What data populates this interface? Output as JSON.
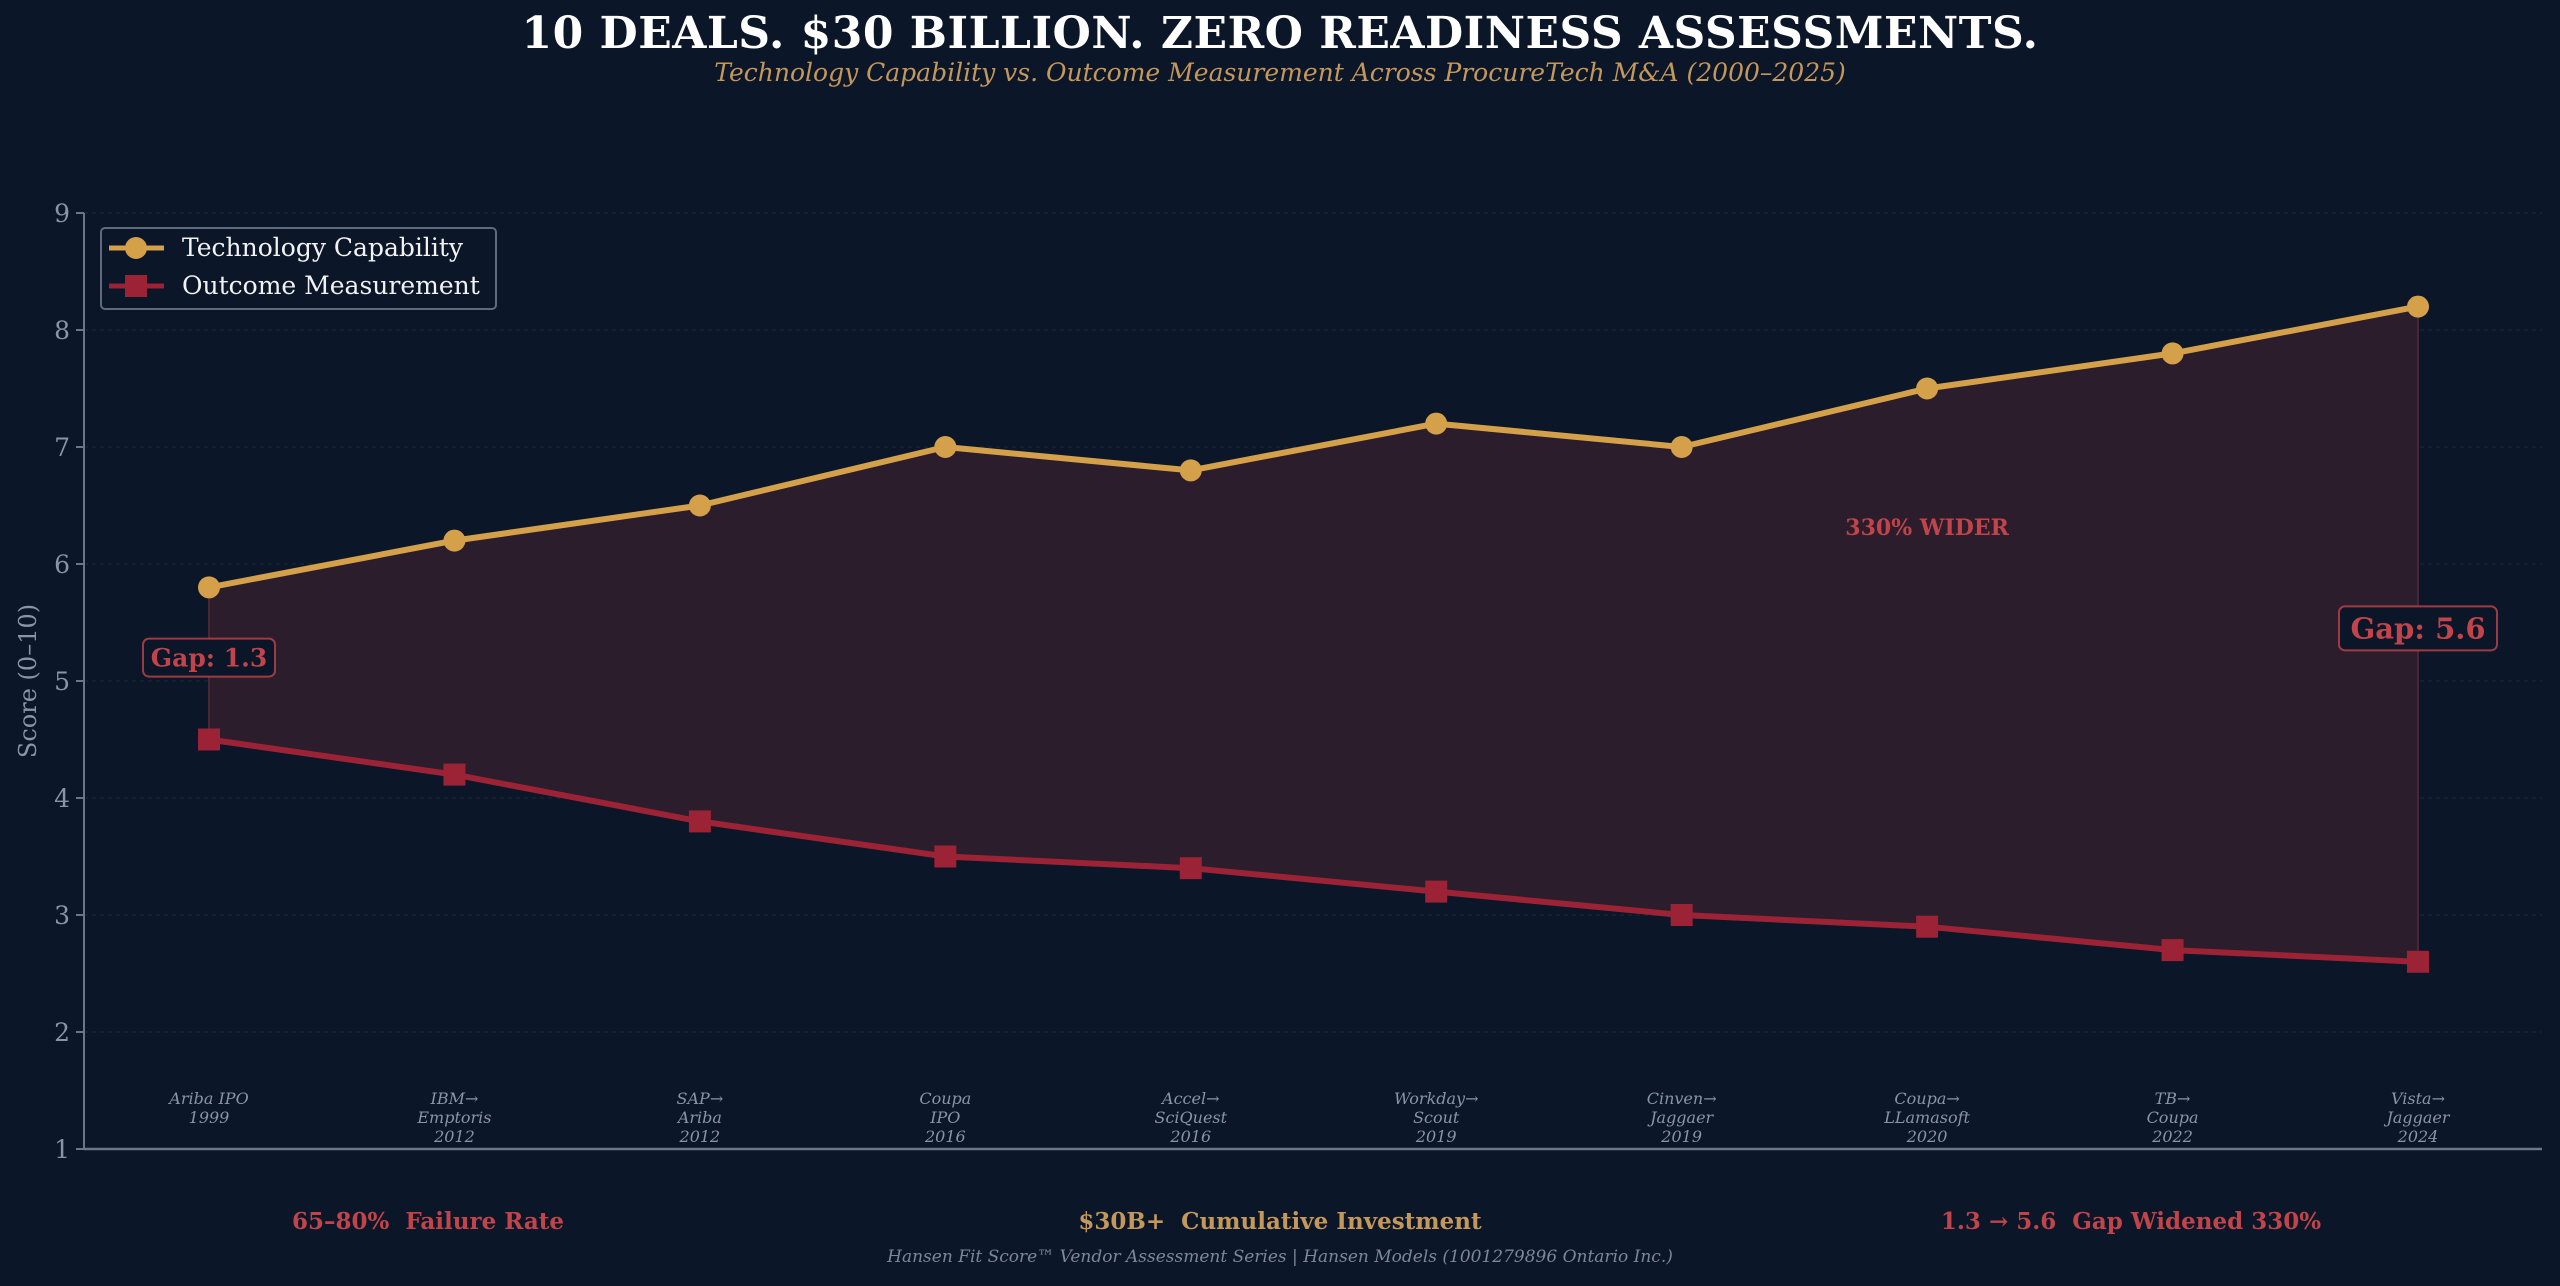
{
  "header": {
    "title": "10 DEALS. $30 BILLION. ZERO READINESS ASSESSMENTS.",
    "subtitle": "Technology Capability vs. Outcome Measurement Across ProcureTech M&A (2000–2025)"
  },
  "colors": {
    "background": "#0b1628",
    "tech": "#d4a04a",
    "outcome": "#9b2335",
    "gap_fill": "#2e1d2c",
    "annotation": "#c0444a",
    "axis": "#6b7789",
    "tick_text": "#8a94a6",
    "gold_text": "#c4975a"
  },
  "chart_data": {
    "type": "line",
    "title": "10 DEALS. $30 BILLION. ZERO READINESS ASSESSMENTS.",
    "subtitle": "Technology Capability vs. Outcome Measurement Across ProcureTech M&A (2000–2025)",
    "xlabel": "",
    "ylabel": "Score (0–10)",
    "ylim": [
      1,
      9
    ],
    "yticks": [
      1,
      2,
      3,
      4,
      5,
      6,
      7,
      8,
      9
    ],
    "grid": true,
    "legend_position": "top-left",
    "categories": [
      [
        "Ariba IPO",
        "1999"
      ],
      [
        "IBM→",
        "Emptoris",
        "2012"
      ],
      [
        "SAP→",
        "Ariba",
        "2012"
      ],
      [
        "Coupa",
        "IPO",
        "2016"
      ],
      [
        "Accel→",
        "SciQuest",
        "2016"
      ],
      [
        "Workday→",
        "Scout",
        "2019"
      ],
      [
        "Cinven→",
        "Jaggaer",
        "2019"
      ],
      [
        "Coupa→",
        "LLamasoft",
        "2020"
      ],
      [
        "TB→",
        "Coupa",
        "2022"
      ],
      [
        "Vista→",
        "Jaggaer",
        "2024"
      ]
    ],
    "series": [
      {
        "name": "Technology Capability",
        "marker": "circle",
        "values": [
          5.8,
          6.2,
          6.5,
          7.0,
          6.8,
          7.2,
          7.0,
          7.5,
          7.8,
          8.2
        ]
      },
      {
        "name": "Outcome Measurement",
        "marker": "square",
        "values": [
          4.5,
          4.2,
          3.8,
          3.5,
          3.4,
          3.2,
          3.0,
          2.9,
          2.7,
          2.6
        ]
      }
    ],
    "annotations": [
      {
        "text": "Gap: 1.3",
        "at_index": 0,
        "y": 5.2
      },
      {
        "text": "Gap: 5.6",
        "at_index": 9,
        "y": 5.45
      },
      {
        "text": "330% WIDER",
        "at_index": 7,
        "y": 6.25
      }
    ]
  },
  "stats": [
    {
      "text": "65–80%  Failure Rate",
      "color": "#c0444a"
    },
    {
      "text": "$30B+  Cumulative Investment",
      "color": "#c4975a"
    },
    {
      "text": "1.3 → 5.6  Gap Widened 330%",
      "color": "#c0444a"
    }
  ],
  "footer": "Hansen Fit Score™ Vendor Assessment Series  |  Hansen Models (1001279896 Ontario Inc.)"
}
